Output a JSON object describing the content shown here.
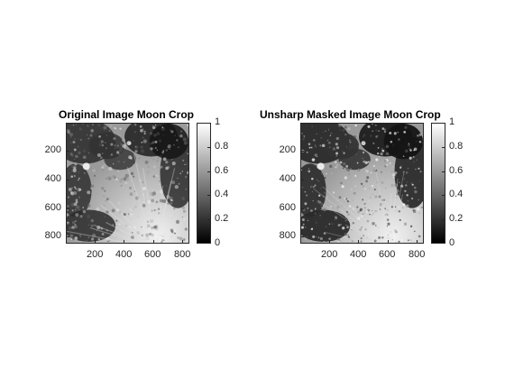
{
  "chart_data": [
    {
      "type": "heatmap",
      "title": "Original Image Moon Crop",
      "xlabel": "",
      "ylabel": "",
      "x_ticks": [
        200,
        400,
        600,
        800
      ],
      "y_ticks": [
        200,
        400,
        600,
        800
      ],
      "xlim": [
        1,
        850
      ],
      "ylim": [
        850,
        1
      ],
      "colormap": "gray",
      "colorbar": {
        "ticks": [
          "0",
          "0.2",
          "0.4",
          "0.6",
          "0.8",
          "1"
        ],
        "range": [
          0,
          1
        ]
      }
    },
    {
      "type": "heatmap",
      "title": "Unsharp Masked Image Moon Crop",
      "xlabel": "",
      "ylabel": "",
      "x_ticks": [
        200,
        400,
        600,
        800
      ],
      "y_ticks": [
        200,
        400,
        600,
        800
      ],
      "xlim": [
        1,
        850
      ],
      "ylim": [
        850,
        1
      ],
      "colormap": "gray",
      "colorbar": {
        "ticks": [
          "0",
          "0.2",
          "0.4",
          "0.6",
          "0.8",
          "1"
        ],
        "range": [
          0,
          1
        ]
      }
    }
  ]
}
